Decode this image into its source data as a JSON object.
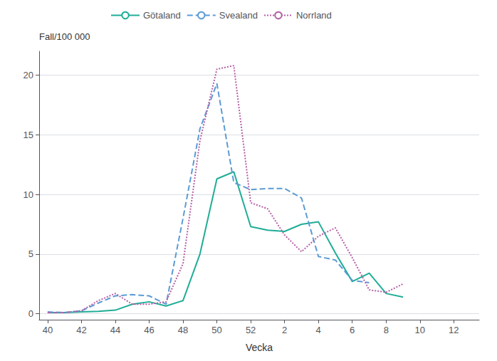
{
  "chart_data": {
    "type": "line",
    "xlabel": "Vecka",
    "ylabel": "Fall/100 000",
    "categories": [
      "40",
      null,
      "42",
      null,
      "44",
      null,
      "46",
      null,
      "48",
      null,
      "50",
      null,
      "52",
      null,
      "2",
      null,
      "4",
      null,
      "6",
      null,
      "8",
      null,
      "10",
      null,
      "12",
      null
    ],
    "series": [
      {
        "name": "Götaland",
        "color": "#1fad96",
        "line_style": "solid",
        "values": [
          0.1,
          0.1,
          0.15,
          0.2,
          0.3,
          0.8,
          1.0,
          0.65,
          1.1,
          5.0,
          11.3,
          11.9,
          7.3,
          7.0,
          6.9,
          7.5,
          7.7,
          5.1,
          2.7,
          3.4,
          1.7,
          1.4,
          null,
          null,
          null,
          null
        ]
      },
      {
        "name": "Svealand",
        "color": "#5b9bd5",
        "line_style": "dashed",
        "values": [
          0.15,
          0.1,
          0.25,
          0.9,
          1.5,
          1.6,
          1.5,
          0.8,
          8.0,
          15.5,
          19.3,
          11.0,
          10.4,
          10.5,
          10.5,
          9.7,
          4.8,
          4.5,
          2.8,
          2.6,
          null,
          null,
          null,
          null,
          null,
          null
        ]
      },
      {
        "name": "Norrland",
        "color": "#b55fa6",
        "line_style": "dotted",
        "values": [
          0.1,
          0.1,
          0.25,
          1.1,
          1.7,
          0.8,
          0.8,
          1.0,
          4.2,
          14.5,
          20.5,
          20.8,
          9.3,
          8.8,
          6.6,
          5.2,
          6.5,
          7.2,
          4.7,
          2.0,
          1.8,
          2.5,
          null,
          null,
          null,
          null
        ]
      }
    ],
    "ylim": [
      -0.5,
      22
    ],
    "yticks": [
      0,
      5,
      10,
      15,
      20
    ],
    "grid": true,
    "legend": "upper left"
  }
}
